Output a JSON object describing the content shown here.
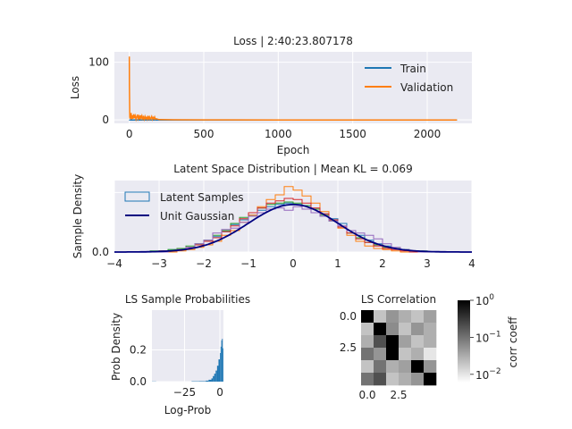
{
  "figure_title": "",
  "chart_data": [
    {
      "id": "loss",
      "type": "line",
      "title": "Loss | 2:40:23.807178",
      "xlabel": "Epoch",
      "ylabel": "Loss",
      "xlim": [
        -100,
        2300
      ],
      "ylim": [
        -6,
        118
      ],
      "xticks": [
        0,
        500,
        1000,
        1500,
        2000
      ],
      "yticks": [
        0,
        100
      ],
      "grid": true,
      "legend_position": "top-right",
      "series": [
        {
          "name": "Train",
          "color": "#1f77b4",
          "x": [
            0,
            1,
            2,
            5,
            10,
            2200
          ],
          "y": [
            0.5,
            0.2,
            0.1,
            0.0,
            -0.2,
            -0.3
          ]
        },
        {
          "name": "Validation",
          "color": "#ff7f0e",
          "x": [
            0,
            1,
            2,
            3,
            5,
            8,
            10,
            12,
            15,
            20,
            25,
            30,
            35,
            40,
            45,
            50,
            55,
            60,
            65,
            70,
            75,
            80,
            85,
            90,
            95,
            100,
            105,
            110,
            115,
            120,
            125,
            130,
            135,
            140,
            145,
            150,
            155,
            160,
            165,
            170,
            175,
            180,
            200,
            250,
            300,
            500,
            1000,
            1500,
            2000,
            2200
          ],
          "y": [
            110,
            60,
            30,
            5,
            2,
            10,
            3,
            12,
            1,
            8,
            2,
            10,
            3,
            7,
            1,
            5,
            9,
            2,
            6,
            1,
            8,
            3,
            7,
            2,
            5,
            1,
            6,
            2,
            4,
            1,
            7,
            2,
            5,
            1,
            3,
            6,
            1,
            4,
            2,
            5,
            1,
            2,
            0.5,
            0.3,
            0.2,
            0.0,
            -0.1,
            -0.2,
            -0.2,
            -0.2
          ]
        }
      ]
    },
    {
      "id": "latent",
      "type": "histogram",
      "title": "Latent Space Distribution | Mean KL = 0.069",
      "xlabel": "",
      "ylabel": "Sample Density",
      "xlim": [
        -4,
        4
      ],
      "ylim": [
        0,
        0.6
      ],
      "xticks": [
        -4,
        -3,
        -2,
        -1,
        0,
        1,
        2,
        3,
        4
      ],
      "yticks": [
        0.0,
        0.5
      ],
      "grid": true,
      "legend_position": "top-left",
      "legend": [
        {
          "name": "Latent Samples",
          "kind": "box",
          "color": "#1f77b4"
        },
        {
          "name": "Unit Gaussian",
          "kind": "line",
          "color": "#000080"
        }
      ],
      "bin_edges": [
        -4.0,
        -3.8,
        -3.6,
        -3.4,
        -3.2,
        -3.0,
        -2.8,
        -2.6,
        -2.4,
        -2.2,
        -2.0,
        -1.8,
        -1.6,
        -1.4,
        -1.2,
        -1.0,
        -0.8,
        -0.6,
        -0.4,
        -0.2,
        0.0,
        0.2,
        0.4,
        0.6,
        0.8,
        1.0,
        1.2,
        1.4,
        1.6,
        1.8,
        2.0,
        2.2,
        2.4,
        2.6,
        2.8,
        3.0,
        3.2,
        3.4,
        3.6,
        3.8,
        4.0
      ],
      "series": [
        {
          "color": "#1f77b4",
          "values": [
            0.0,
            0.0,
            0.0,
            0.0,
            0.0,
            0.01,
            0.02,
            0.03,
            0.04,
            0.06,
            0.09,
            0.13,
            0.17,
            0.23,
            0.27,
            0.31,
            0.35,
            0.38,
            0.4,
            0.41,
            0.4,
            0.39,
            0.36,
            0.32,
            0.28,
            0.24,
            0.18,
            0.14,
            0.1,
            0.07,
            0.05,
            0.03,
            0.02,
            0.01,
            0.0,
            0.0,
            0.0,
            0.0,
            0.0,
            0.0
          ]
        },
        {
          "color": "#ff7f0e",
          "values": [
            0.0,
            0.0,
            0.0,
            0.0,
            0.0,
            0.0,
            0.0,
            0.01,
            0.02,
            0.04,
            0.06,
            0.09,
            0.14,
            0.18,
            0.25,
            0.31,
            0.38,
            0.44,
            0.48,
            0.55,
            0.52,
            0.47,
            0.41,
            0.34,
            0.27,
            0.2,
            0.14,
            0.09,
            0.05,
            0.03,
            0.02,
            0.01,
            0.0,
            0.0,
            0.0,
            0.0,
            0.0,
            0.0,
            0.0,
            0.0
          ]
        },
        {
          "color": "#2ca02c",
          "values": [
            0.0,
            0.0,
            0.0,
            0.0,
            0.01,
            0.01,
            0.02,
            0.03,
            0.05,
            0.07,
            0.1,
            0.14,
            0.18,
            0.24,
            0.29,
            0.33,
            0.37,
            0.4,
            0.41,
            0.42,
            0.41,
            0.39,
            0.36,
            0.31,
            0.26,
            0.21,
            0.16,
            0.12,
            0.08,
            0.06,
            0.04,
            0.03,
            0.02,
            0.01,
            0.01,
            0.0,
            0.0,
            0.0,
            0.0,
            0.0
          ]
        },
        {
          "color": "#d62728",
          "values": [
            0.0,
            0.0,
            0.0,
            0.0,
            0.0,
            0.01,
            0.01,
            0.02,
            0.04,
            0.06,
            0.09,
            0.12,
            0.17,
            0.22,
            0.28,
            0.33,
            0.37,
            0.41,
            0.43,
            0.45,
            0.44,
            0.41,
            0.37,
            0.32,
            0.27,
            0.21,
            0.16,
            0.11,
            0.08,
            0.05,
            0.03,
            0.02,
            0.01,
            0.0,
            0.0,
            0.0,
            0.0,
            0.0,
            0.0,
            0.0
          ]
        },
        {
          "color": "#9467bd",
          "values": [
            0.0,
            0.0,
            0.0,
            0.0,
            0.0,
            0.0,
            0.01,
            0.02,
            0.04,
            0.07,
            0.1,
            0.16,
            0.19,
            0.2,
            0.25,
            0.3,
            0.33,
            0.36,
            0.37,
            0.35,
            0.38,
            0.36,
            0.33,
            0.3,
            0.26,
            0.22,
            0.18,
            0.16,
            0.14,
            0.11,
            0.07,
            0.04,
            0.02,
            0.01,
            0.0,
            0.0,
            0.0,
            0.0,
            0.0,
            0.0
          ]
        }
      ],
      "gaussian": {
        "mean": 0,
        "std": 1,
        "color": "#000080"
      }
    },
    {
      "id": "probs",
      "type": "histogram",
      "title": "LS Sample Probabilities",
      "xlabel": "Log-Prob",
      "ylabel": "Prob Density",
      "xlim": [
        -48,
        2.5
      ],
      "ylim": [
        0,
        0.45
      ],
      "xticks": [
        -25,
        0
      ],
      "yticks": [
        0.0,
        0.2
      ],
      "grid": true,
      "color": "#1f77b4",
      "bins": [
        {
          "x0": -48,
          "x1": -45,
          "h": 0.001
        },
        {
          "x0": -20,
          "x1": -15,
          "h": 0.002
        },
        {
          "x0": -15,
          "x1": -10,
          "h": 0.003
        },
        {
          "x0": -10,
          "x1": -8,
          "h": 0.006
        },
        {
          "x0": -8,
          "x1": -6,
          "h": 0.012
        },
        {
          "x0": -6,
          "x1": -5,
          "h": 0.02
        },
        {
          "x0": -5,
          "x1": -4,
          "h": 0.035
        },
        {
          "x0": -4,
          "x1": -3,
          "h": 0.05
        },
        {
          "x0": -3,
          "x1": -2,
          "h": 0.07
        },
        {
          "x0": -2,
          "x1": -1,
          "h": 0.1
        },
        {
          "x0": -1,
          "x1": 0,
          "h": 0.14
        },
        {
          "x0": 0,
          "x1": 0.5,
          "h": 0.18
        },
        {
          "x0": 0.5,
          "x1": 1,
          "h": 0.22
        },
        {
          "x0": 1,
          "x1": 1.5,
          "h": 0.26
        },
        {
          "x0": 1.5,
          "x1": 2,
          "h": 0.27
        },
        {
          "x0": 2,
          "x1": 2.5,
          "h": 0.21
        }
      ]
    },
    {
      "id": "corr",
      "type": "heatmap",
      "title": "LS Correlation",
      "xticks": [
        0.0,
        2.5
      ],
      "yticks": [
        0.0,
        2.5
      ],
      "colormap": "gray_r",
      "scale": "log",
      "vmin": 0.006,
      "vmax": 1,
      "colorbar_label": "corr coeff",
      "colorbar_ticks": [
        {
          "base": "10",
          "exp": "0",
          "value": 1
        },
        {
          "base": "10",
          "exp": "−1",
          "value": 0.1
        },
        {
          "base": "10",
          "exp": "−2",
          "value": 0.01
        }
      ],
      "matrix": [
        [
          1.0,
          0.02,
          0.05,
          0.03,
          0.02,
          0.04
        ],
        [
          0.02,
          1.0,
          0.06,
          0.02,
          0.05,
          0.03
        ],
        [
          0.03,
          0.2,
          1.0,
          0.04,
          0.02,
          0.03
        ],
        [
          0.1,
          0.05,
          1.0,
          0.02,
          0.03,
          0.01
        ],
        [
          0.02,
          0.1,
          0.03,
          0.04,
          1.0,
          0.05
        ],
        [
          0.1,
          0.2,
          0.02,
          0.03,
          0.05,
          1.0
        ]
      ]
    }
  ]
}
